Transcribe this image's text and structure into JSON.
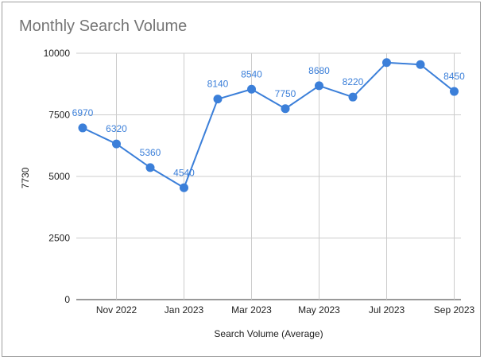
{
  "chart_data": {
    "type": "line",
    "title": "Monthly Search Volume",
    "xlabel": "Search Volume (Average)",
    "ylabel": "7730",
    "ylim": [
      0,
      10000
    ],
    "yticks": [
      0,
      2500,
      5000,
      7500,
      10000
    ],
    "grid": true,
    "x": [
      "2022-10",
      "2022-11",
      "2022-12",
      "2023-01",
      "2023-02",
      "2023-03",
      "2023-04",
      "2023-05",
      "2023-06",
      "2023-07",
      "2023-08",
      "2023-09"
    ],
    "xtick_labels": [
      "Nov 2022",
      "Jan 2023",
      "Mar 2023",
      "May 2023",
      "Jul 2023",
      "Sep 2023"
    ],
    "xtick_positions": [
      "2022-11",
      "2023-01",
      "2023-03",
      "2023-05",
      "2023-07",
      "2023-09"
    ],
    "series": [
      {
        "values": [
          6970,
          6320,
          5360,
          4540,
          8140,
          8540,
          7750,
          8680,
          8220,
          9620,
          9540,
          8450
        ],
        "labels": [
          "6970",
          "6320",
          "5360",
          "4540",
          "8140",
          "8540",
          "7750",
          "8680",
          "8220",
          "",
          "",
          "8450"
        ],
        "color": "#3b7fd9"
      }
    ]
  }
}
